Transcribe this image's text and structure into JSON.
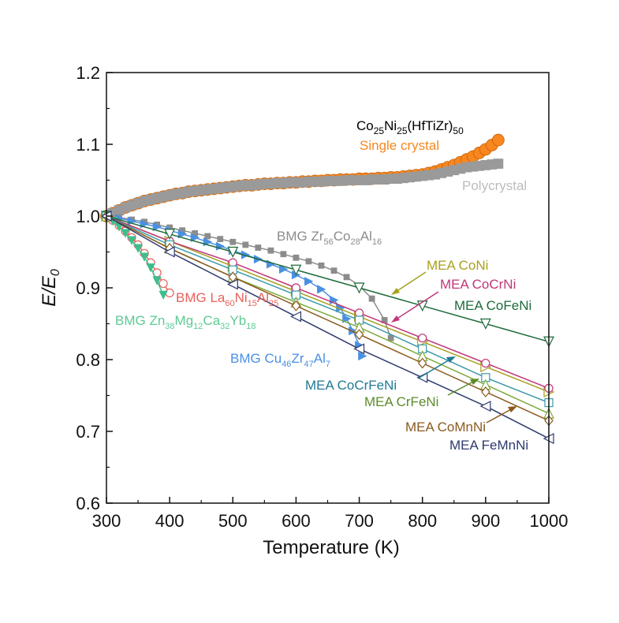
{
  "chart_data": {
    "type": "scatter",
    "xlabel": "Temperature (K)",
    "ylabel": "E/E",
    "ylabel_sub": "0",
    "xlim": [
      300,
      1000
    ],
    "ylim": [
      0.6,
      1.2
    ],
    "xticks": [
      300,
      400,
      500,
      600,
      700,
      800,
      900,
      1000
    ],
    "yticks": [
      0.6,
      0.7,
      0.8,
      0.9,
      1.0,
      1.1,
      1.2
    ],
    "xtick_labels": [
      "300",
      "400",
      "500",
      "600",
      "700",
      "800",
      "900",
      "1000"
    ],
    "ytick_labels": [
      "0.6",
      "0.7",
      "0.8",
      "0.9",
      "1.0",
      "1.1",
      "1.2"
    ],
    "grid": false,
    "series": [
      {
        "name": "Single crystal",
        "color": "#F7871E",
        "marker": "circle-filled",
        "line": false,
        "x": [
          300,
          310,
          320,
          330,
          340,
          350,
          360,
          370,
          380,
          390,
          400,
          410,
          420,
          430,
          440,
          450,
          460,
          470,
          480,
          490,
          500,
          510,
          520,
          530,
          540,
          550,
          560,
          570,
          580,
          590,
          600,
          610,
          620,
          630,
          640,
          650,
          660,
          670,
          680,
          690,
          700,
          710,
          720,
          730,
          740,
          750,
          760,
          770,
          780,
          790,
          800,
          810,
          820,
          830,
          840,
          850,
          860,
          870,
          880,
          890,
          900,
          910,
          920
        ],
        "y": [
          1.0,
          1.004,
          1.008,
          1.012,
          1.015,
          1.018,
          1.021,
          1.023,
          1.025,
          1.027,
          1.029,
          1.031,
          1.032,
          1.034,
          1.035,
          1.036,
          1.037,
          1.038,
          1.039,
          1.04,
          1.041,
          1.042,
          1.043,
          1.043,
          1.044,
          1.045,
          1.045,
          1.046,
          1.046,
          1.047,
          1.047,
          1.048,
          1.048,
          1.049,
          1.049,
          1.05,
          1.05,
          1.051,
          1.051,
          1.051,
          1.052,
          1.052,
          1.052,
          1.053,
          1.053,
          1.054,
          1.054,
          1.055,
          1.056,
          1.057,
          1.058,
          1.06,
          1.062,
          1.065,
          1.068,
          1.071,
          1.075,
          1.079,
          1.083,
          1.088,
          1.093,
          1.099,
          1.106
        ]
      },
      {
        "name": "Polycrystal",
        "color": "#9A9A9A",
        "marker": "square-filled",
        "line": false,
        "x": [
          300,
          310,
          320,
          330,
          340,
          350,
          360,
          370,
          380,
          390,
          400,
          410,
          420,
          430,
          440,
          450,
          460,
          470,
          480,
          490,
          500,
          510,
          520,
          530,
          540,
          550,
          560,
          570,
          580,
          590,
          600,
          610,
          620,
          630,
          640,
          650,
          660,
          670,
          680,
          690,
          700,
          710,
          720,
          730,
          740,
          750,
          760,
          770,
          780,
          790,
          800,
          810,
          820,
          830,
          840,
          850,
          860,
          870,
          880,
          890,
          900,
          910,
          920
        ],
        "y": [
          1.0,
          1.004,
          1.008,
          1.012,
          1.015,
          1.018,
          1.021,
          1.023,
          1.025,
          1.027,
          1.029,
          1.031,
          1.032,
          1.034,
          1.035,
          1.036,
          1.037,
          1.038,
          1.039,
          1.04,
          1.041,
          1.042,
          1.043,
          1.043,
          1.044,
          1.045,
          1.045,
          1.046,
          1.046,
          1.047,
          1.047,
          1.047,
          1.048,
          1.048,
          1.048,
          1.049,
          1.049,
          1.049,
          1.05,
          1.05,
          1.05,
          1.05,
          1.051,
          1.051,
          1.051,
          1.052,
          1.052,
          1.053,
          1.054,
          1.055,
          1.056,
          1.057,
          1.058,
          1.06,
          1.062,
          1.064,
          1.066,
          1.068,
          1.069,
          1.07,
          1.071,
          1.072,
          1.073
        ]
      },
      {
        "name": "BMG Zr56Co28Al16",
        "color": "#8C8C8C",
        "marker": "square-filled-small",
        "line": true,
        "x": [
          300,
          320,
          340,
          360,
          380,
          400,
          420,
          440,
          460,
          480,
          500,
          520,
          540,
          560,
          580,
          600,
          620,
          640,
          660,
          680,
          700,
          720,
          740,
          750
        ],
        "y": [
          1.0,
          0.998,
          0.995,
          0.992,
          0.988,
          0.984,
          0.98,
          0.976,
          0.972,
          0.968,
          0.964,
          0.96,
          0.956,
          0.952,
          0.947,
          0.942,
          0.937,
          0.931,
          0.924,
          0.915,
          0.903,
          0.885,
          0.855,
          0.83
        ]
      },
      {
        "name": "BMG Cu46Zr47Al7",
        "color": "#4A90E2",
        "marker": "triangle-right-filled",
        "line": true,
        "x": [
          300,
          320,
          340,
          360,
          380,
          400,
          420,
          440,
          460,
          480,
          500,
          520,
          540,
          560,
          580,
          600,
          620,
          640,
          660,
          670,
          680,
          690,
          700,
          705
        ],
        "y": [
          1.0,
          0.997,
          0.993,
          0.989,
          0.985,
          0.98,
          0.975,
          0.97,
          0.964,
          0.958,
          0.952,
          0.946,
          0.94,
          0.933,
          0.926,
          0.918,
          0.909,
          0.898,
          0.883,
          0.872,
          0.857,
          0.84,
          0.82,
          0.805
        ]
      },
      {
        "name": "BMG La60Ni15Al25",
        "color": "#E8615A",
        "marker": "circle-open",
        "line": true,
        "x": [
          300,
          310,
          320,
          330,
          340,
          350,
          360,
          370,
          380,
          390,
          400
        ],
        "y": [
          1.0,
          0.994,
          0.987,
          0.979,
          0.97,
          0.96,
          0.948,
          0.935,
          0.921,
          0.906,
          0.893
        ]
      },
      {
        "name": "BMG Zn38Mg12Ca32Yb18",
        "color": "#3DBE8C",
        "marker": "triangle-down-filled",
        "line": true,
        "x": [
          300,
          310,
          320,
          330,
          340,
          350,
          360,
          370,
          380,
          390
        ],
        "y": [
          1.0,
          0.993,
          0.985,
          0.976,
          0.966,
          0.955,
          0.943,
          0.928,
          0.91,
          0.89
        ]
      },
      {
        "name": "MEA CoNi",
        "color": "#A8A020",
        "marker": "triangle-right-open",
        "line": true,
        "x": [
          300,
          400,
          500,
          600,
          700,
          800,
          900,
          1000
        ],
        "y": [
          1.0,
          0.965,
          0.93,
          0.895,
          0.86,
          0.825,
          0.79,
          0.755
        ]
      },
      {
        "name": "MEA CoCrNi",
        "color": "#C0367A",
        "marker": "circle-open",
        "line": true,
        "x": [
          300,
          400,
          500,
          600,
          700,
          800,
          900,
          1000
        ],
        "y": [
          1.0,
          0.965,
          0.935,
          0.9,
          0.865,
          0.83,
          0.795,
          0.76
        ]
      },
      {
        "name": "MEA CoFeNi",
        "color": "#1E6B3A",
        "marker": "triangle-down-open",
        "line": true,
        "x": [
          300,
          400,
          500,
          600,
          700,
          800,
          900,
          1000
        ],
        "y": [
          1.0,
          0.975,
          0.95,
          0.925,
          0.9,
          0.875,
          0.85,
          0.825
        ]
      },
      {
        "name": "MEA CoCrFeNi",
        "color": "#3A9AA8",
        "marker": "square-open",
        "line": true,
        "x": [
          300,
          400,
          500,
          600,
          700,
          800,
          900,
          1000
        ],
        "y": [
          1.0,
          0.96,
          0.925,
          0.89,
          0.855,
          0.815,
          0.775,
          0.74
        ]
      },
      {
        "name": "MEA CrFeNi",
        "color": "#7FAA3C",
        "marker": "triangle-up-open",
        "line": true,
        "x": [
          300,
          400,
          500,
          600,
          700,
          800,
          900,
          1000
        ],
        "y": [
          1.0,
          0.955,
          0.915,
          0.88,
          0.845,
          0.805,
          0.765,
          0.725
        ]
      },
      {
        "name": "MEA CoMnNi",
        "color": "#8B5A1E",
        "marker": "diamond-open",
        "line": true,
        "x": [
          300,
          400,
          500,
          600,
          700,
          800,
          900,
          1000
        ],
        "y": [
          1.0,
          0.955,
          0.915,
          0.875,
          0.835,
          0.795,
          0.755,
          0.715
        ]
      },
      {
        "name": "MEA FeMnNi",
        "color": "#2E3A6E",
        "marker": "triangle-left-open",
        "line": true,
        "x": [
          300,
          400,
          500,
          600,
          700,
          800,
          900,
          1000
        ],
        "y": [
          1.0,
          0.95,
          0.905,
          0.86,
          0.815,
          0.775,
          0.735,
          0.69
        ]
      }
    ],
    "annotations": [
      {
        "id": "title-main",
        "text": "Co25Ni25(HfTiZr)50",
        "color": "#111111"
      },
      {
        "id": "single-crystal",
        "text": "Single crystal",
        "color": "#F7871E"
      },
      {
        "id": "polycrystal",
        "text": "Polycrystal",
        "color": "#BDBDBD"
      },
      {
        "id": "bmg-zr",
        "text": "BMG Zr56Co28Al16",
        "color": "#8C8C8C"
      },
      {
        "id": "bmg-la",
        "text": "BMG La60Ni15Al25",
        "color": "#E8615A"
      },
      {
        "id": "bmg-zn",
        "text": "BMG Zn38Mg12Ca32Yb18",
        "color": "#5CCB94"
      },
      {
        "id": "bmg-cu",
        "text": "BMG Cu46Zr47Al7",
        "color": "#4A90E2"
      },
      {
        "id": "mea-coni",
        "text": "MEA CoNi",
        "color": "#A8A020"
      },
      {
        "id": "mea-cocrni",
        "text": "MEA CoCrNi",
        "color": "#C0367A"
      },
      {
        "id": "mea-cofeni",
        "text": "MEA CoFeNi",
        "color": "#1E6B3A"
      },
      {
        "id": "mea-cocrfeni",
        "text": "MEA CoCrFeNi",
        "color": "#1F7A94"
      },
      {
        "id": "mea-crfeni",
        "text": "MEA CrFeNi",
        "color": "#5C8A2A"
      },
      {
        "id": "mea-comnni",
        "text": "MEA CoMnNi",
        "color": "#8B5A1E"
      },
      {
        "id": "mea-femnni",
        "text": "MEA FeMnNi",
        "color": "#2E3A6E"
      }
    ]
  }
}
